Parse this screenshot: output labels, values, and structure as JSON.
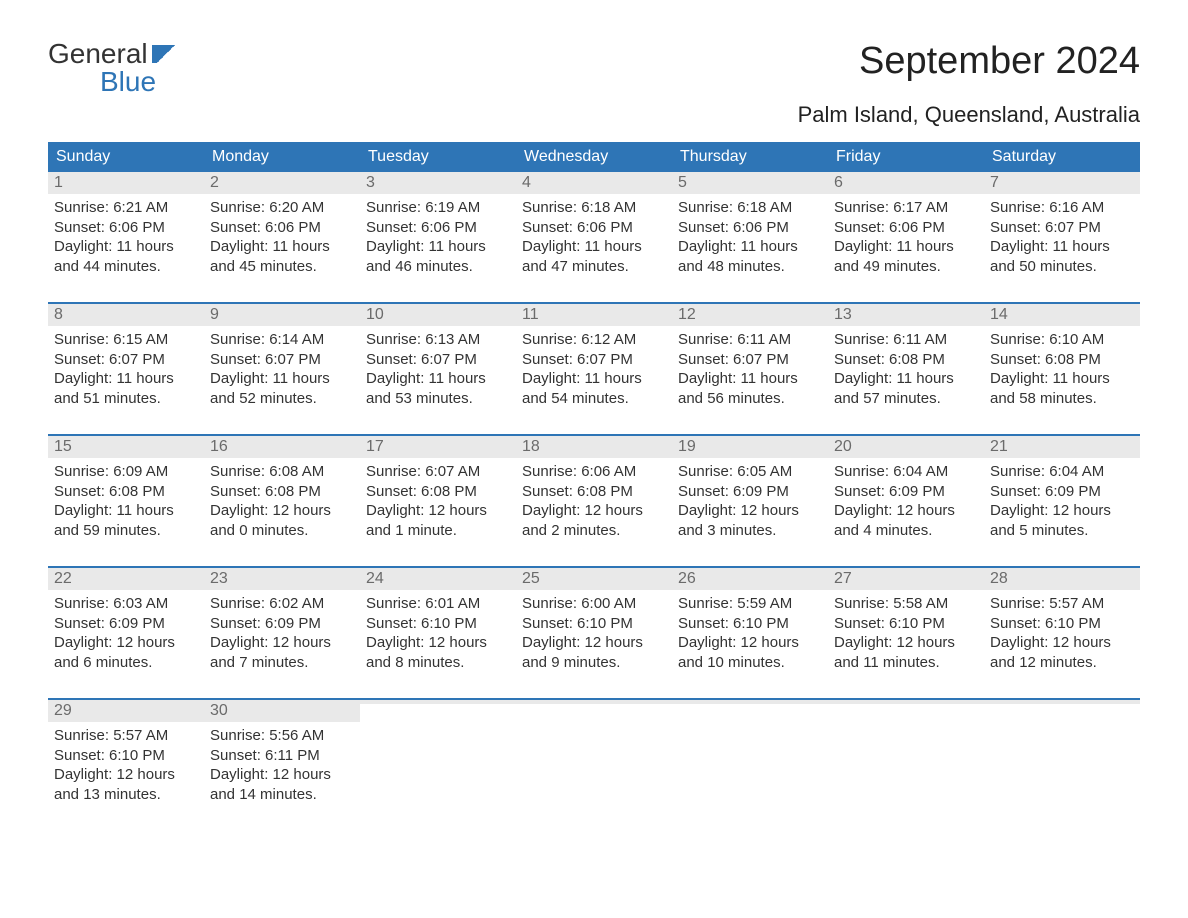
{
  "logo": {
    "word1": "General",
    "word2": "Blue"
  },
  "title": "September 2024",
  "subtitle": "Palm Island, Queensland, Australia",
  "colors": {
    "header_bg": "#2e75b6",
    "header_text": "#ffffff",
    "daynum_bg": "#e9e9e9",
    "daynum_text": "#6b6b6b",
    "body_text": "#333333",
    "week_border": "#2e75b6",
    "page_bg": "#ffffff"
  },
  "typography": {
    "title_fontsize": 38,
    "subtitle_fontsize": 22,
    "dayhead_fontsize": 16,
    "body_fontsize": 15
  },
  "day_headers": [
    "Sunday",
    "Monday",
    "Tuesday",
    "Wednesday",
    "Thursday",
    "Friday",
    "Saturday"
  ],
  "weeks": [
    [
      {
        "n": "1",
        "sunrise": "6:21 AM",
        "sunset": "6:06 PM",
        "daylight": "11 hours and 44 minutes."
      },
      {
        "n": "2",
        "sunrise": "6:20 AM",
        "sunset": "6:06 PM",
        "daylight": "11 hours and 45 minutes."
      },
      {
        "n": "3",
        "sunrise": "6:19 AM",
        "sunset": "6:06 PM",
        "daylight": "11 hours and 46 minutes."
      },
      {
        "n": "4",
        "sunrise": "6:18 AM",
        "sunset": "6:06 PM",
        "daylight": "11 hours and 47 minutes."
      },
      {
        "n": "5",
        "sunrise": "6:18 AM",
        "sunset": "6:06 PM",
        "daylight": "11 hours and 48 minutes."
      },
      {
        "n": "6",
        "sunrise": "6:17 AM",
        "sunset": "6:06 PM",
        "daylight": "11 hours and 49 minutes."
      },
      {
        "n": "7",
        "sunrise": "6:16 AM",
        "sunset": "6:07 PM",
        "daylight": "11 hours and 50 minutes."
      }
    ],
    [
      {
        "n": "8",
        "sunrise": "6:15 AM",
        "sunset": "6:07 PM",
        "daylight": "11 hours and 51 minutes."
      },
      {
        "n": "9",
        "sunrise": "6:14 AM",
        "sunset": "6:07 PM",
        "daylight": "11 hours and 52 minutes."
      },
      {
        "n": "10",
        "sunrise": "6:13 AM",
        "sunset": "6:07 PM",
        "daylight": "11 hours and 53 minutes."
      },
      {
        "n": "11",
        "sunrise": "6:12 AM",
        "sunset": "6:07 PM",
        "daylight": "11 hours and 54 minutes."
      },
      {
        "n": "12",
        "sunrise": "6:11 AM",
        "sunset": "6:07 PM",
        "daylight": "11 hours and 56 minutes."
      },
      {
        "n": "13",
        "sunrise": "6:11 AM",
        "sunset": "6:08 PM",
        "daylight": "11 hours and 57 minutes."
      },
      {
        "n": "14",
        "sunrise": "6:10 AM",
        "sunset": "6:08 PM",
        "daylight": "11 hours and 58 minutes."
      }
    ],
    [
      {
        "n": "15",
        "sunrise": "6:09 AM",
        "sunset": "6:08 PM",
        "daylight": "11 hours and 59 minutes."
      },
      {
        "n": "16",
        "sunrise": "6:08 AM",
        "sunset": "6:08 PM",
        "daylight": "12 hours and 0 minutes."
      },
      {
        "n": "17",
        "sunrise": "6:07 AM",
        "sunset": "6:08 PM",
        "daylight": "12 hours and 1 minute."
      },
      {
        "n": "18",
        "sunrise": "6:06 AM",
        "sunset": "6:08 PM",
        "daylight": "12 hours and 2 minutes."
      },
      {
        "n": "19",
        "sunrise": "6:05 AM",
        "sunset": "6:09 PM",
        "daylight": "12 hours and 3 minutes."
      },
      {
        "n": "20",
        "sunrise": "6:04 AM",
        "sunset": "6:09 PM",
        "daylight": "12 hours and 4 minutes."
      },
      {
        "n": "21",
        "sunrise": "6:04 AM",
        "sunset": "6:09 PM",
        "daylight": "12 hours and 5 minutes."
      }
    ],
    [
      {
        "n": "22",
        "sunrise": "6:03 AM",
        "sunset": "6:09 PM",
        "daylight": "12 hours and 6 minutes."
      },
      {
        "n": "23",
        "sunrise": "6:02 AM",
        "sunset": "6:09 PM",
        "daylight": "12 hours and 7 minutes."
      },
      {
        "n": "24",
        "sunrise": "6:01 AM",
        "sunset": "6:10 PM",
        "daylight": "12 hours and 8 minutes."
      },
      {
        "n": "25",
        "sunrise": "6:00 AM",
        "sunset": "6:10 PM",
        "daylight": "12 hours and 9 minutes."
      },
      {
        "n": "26",
        "sunrise": "5:59 AM",
        "sunset": "6:10 PM",
        "daylight": "12 hours and 10 minutes."
      },
      {
        "n": "27",
        "sunrise": "5:58 AM",
        "sunset": "6:10 PM",
        "daylight": "12 hours and 11 minutes."
      },
      {
        "n": "28",
        "sunrise": "5:57 AM",
        "sunset": "6:10 PM",
        "daylight": "12 hours and 12 minutes."
      }
    ],
    [
      {
        "n": "29",
        "sunrise": "5:57 AM",
        "sunset": "6:10 PM",
        "daylight": "12 hours and 13 minutes."
      },
      {
        "n": "30",
        "sunrise": "5:56 AM",
        "sunset": "6:11 PM",
        "daylight": "12 hours and 14 minutes."
      },
      null,
      null,
      null,
      null,
      null
    ]
  ],
  "labels": {
    "sunrise": "Sunrise:",
    "sunset": "Sunset:",
    "daylight": "Daylight:"
  }
}
